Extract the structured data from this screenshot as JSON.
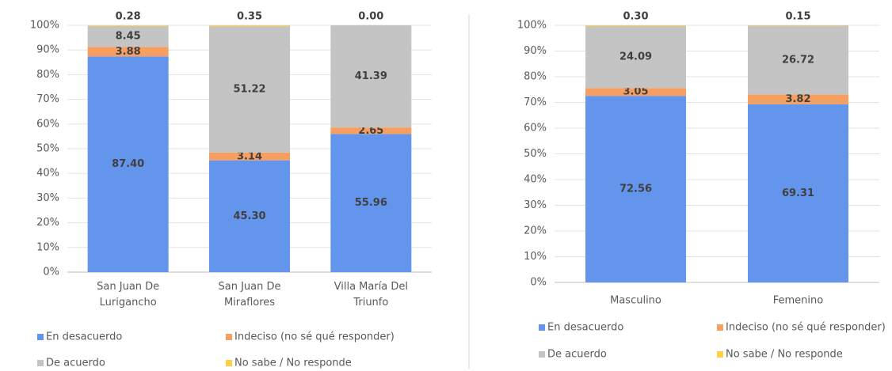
{
  "chart_data": [
    {
      "type": "bar",
      "stacked": true,
      "categories": [
        "San Juan De Lurigancho",
        "San Juan De Miraflores",
        "Villa María Del Triunfo"
      ],
      "series": [
        {
          "name": "En desacuerdo",
          "color": "#6495ed",
          "values": [
            87.4,
            45.3,
            55.96
          ],
          "value_labels": [
            "87.40",
            "45.30",
            "55.96"
          ]
        },
        {
          "name": "Indeciso (no sé qué responder)",
          "color": "#f79f61",
          "values": [
            3.88,
            3.14,
            2.65
          ],
          "value_labels": [
            "3.88",
            "3.14",
            "2.65"
          ]
        },
        {
          "name": "De acuerdo",
          "color": "#c4c4c4",
          "values": [
            8.45,
            51.22,
            41.39
          ],
          "value_labels": [
            "8.45",
            "51.22",
            "41.39"
          ]
        },
        {
          "name": "No sabe / No responde",
          "color": "#ffd044",
          "values": [
            0.28,
            0.35,
            0
          ],
          "value_labels": [
            "0.28",
            "0.35",
            "0.00"
          ]
        }
      ],
      "ylim": [
        0,
        100
      ],
      "yticks": [
        {
          "value": 0,
          "label": "0%"
        },
        {
          "value": 10,
          "label": "10%"
        },
        {
          "value": 20,
          "label": "20%"
        },
        {
          "value": 30,
          "label": "30%"
        },
        {
          "value": 40,
          "label": "40%"
        },
        {
          "value": 50,
          "label": "50%"
        },
        {
          "value": 60,
          "label": "60%"
        },
        {
          "value": 70,
          "label": "70%"
        },
        {
          "value": 80,
          "label": "80%"
        },
        {
          "value": 90,
          "label": "90%"
        },
        {
          "value": 100,
          "label": "100%"
        }
      ],
      "grid": true,
      "legend": "bottom"
    },
    {
      "type": "bar",
      "stacked": true,
      "categories": [
        "Masculino",
        "Femenino"
      ],
      "series": [
        {
          "name": "En desacuerdo",
          "color": "#6495ed",
          "values": [
            72.56,
            69.31
          ],
          "value_labels": [
            "72.56",
            "69.31"
          ]
        },
        {
          "name": "Indeciso (no sé qué responder)",
          "color": "#f79f61",
          "values": [
            3.05,
            3.82
          ],
          "value_labels": [
            "3.05",
            "3.82"
          ]
        },
        {
          "name": "De acuerdo",
          "color": "#c4c4c4",
          "values": [
            24.09,
            26.72
          ],
          "value_labels": [
            "24.09",
            "26.72"
          ]
        },
        {
          "name": "No sabe / No responde",
          "color": "#ffd044",
          "values": [
            0.3,
            0.15
          ],
          "value_labels": [
            "0.30",
            "0.15"
          ]
        }
      ],
      "ylim": [
        0,
        100
      ],
      "yticks": [
        {
          "value": 0,
          "label": "0%"
        },
        {
          "value": 10,
          "label": "10%"
        },
        {
          "value": 20,
          "label": "20%"
        },
        {
          "value": 30,
          "label": "30%"
        },
        {
          "value": 40,
          "label": "40%"
        },
        {
          "value": 50,
          "label": "50%"
        },
        {
          "value": 60,
          "label": "60%"
        },
        {
          "value": 70,
          "label": "70%"
        },
        {
          "value": 80,
          "label": "80%"
        },
        {
          "value": 90,
          "label": "90%"
        },
        {
          "value": 100,
          "label": "100%"
        }
      ],
      "grid": true,
      "legend": "bottom"
    }
  ]
}
